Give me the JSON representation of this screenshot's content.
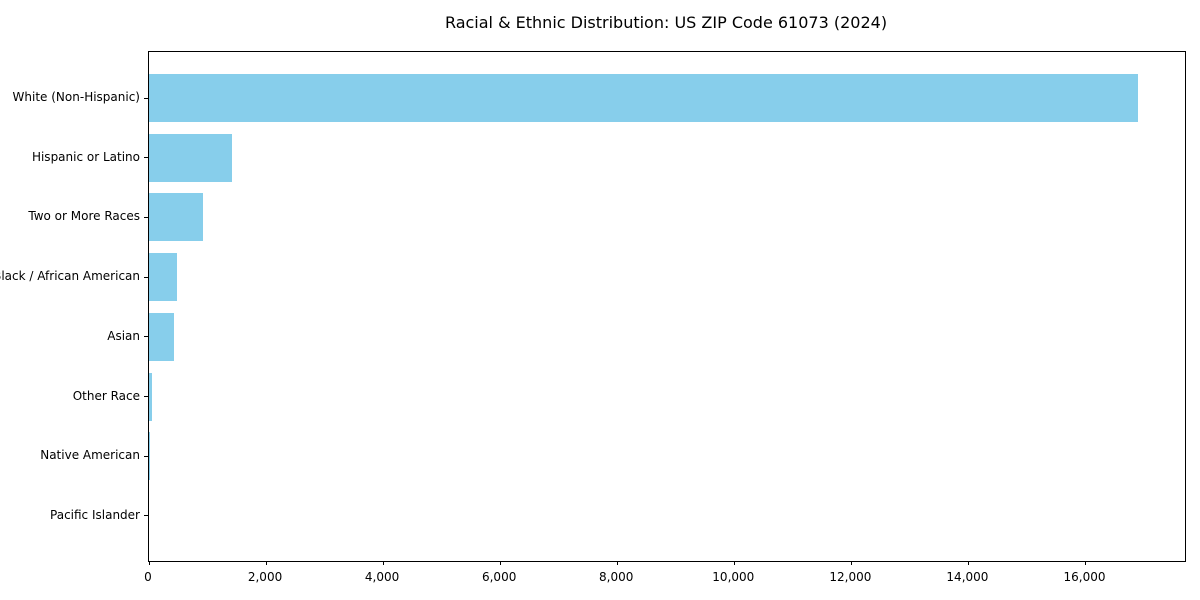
{
  "chart_data": {
    "type": "bar",
    "orientation": "horizontal",
    "title": "Racial & Ethnic Distribution: US ZIP Code 61073 (2024)",
    "categories": [
      "White (Non-Hispanic)",
      "Hispanic or Latino",
      "Two or More Races",
      "Black / African American",
      "Asian",
      "Other Race",
      "Native American",
      "Pacific Islander"
    ],
    "values": [
      16900,
      1410,
      930,
      480,
      430,
      50,
      10,
      0
    ],
    "xlabel": "",
    "ylabel": "",
    "xlim": [
      0,
      17700
    ],
    "xticks": [
      0,
      2000,
      4000,
      6000,
      8000,
      10000,
      12000,
      14000,
      16000
    ],
    "xtick_labels": [
      "0",
      "2,000",
      "4,000",
      "6,000",
      "8,000",
      "10,000",
      "12,000",
      "14,000",
      "16,000"
    ],
    "bar_color": "#87CEEB",
    "axis_color": "#000000",
    "grid": false,
    "legend": null
  }
}
